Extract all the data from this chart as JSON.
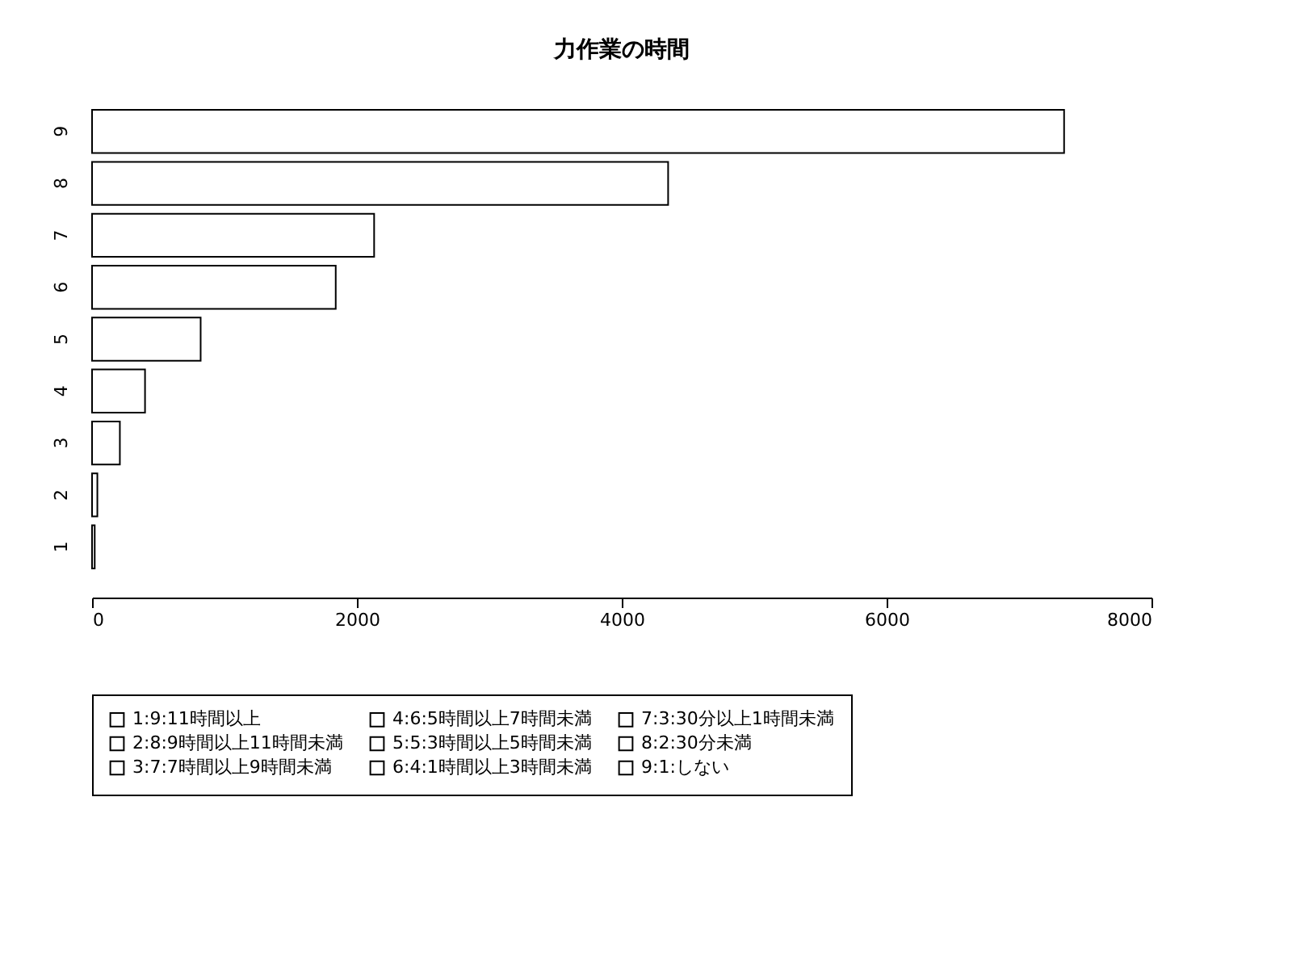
{
  "chart_data": {
    "type": "bar",
    "orientation": "horizontal",
    "title": "力作業の時間",
    "categories": [
      "9",
      "8",
      "7",
      "6",
      "5",
      "4",
      "3",
      "2",
      "1"
    ],
    "series": [
      {
        "name": "1:9:11時間以上",
        "color": "#ffffff",
        "values": [
          null,
          null,
          null,
          null,
          null,
          null,
          null,
          null,
          20
        ]
      },
      {
        "name": "2:8:9時間以上11時間未満",
        "color": "#ffffff",
        "values": [
          null,
          null,
          null,
          null,
          null,
          null,
          null,
          40,
          null
        ]
      },
      {
        "name": "3:7:7時間以上9時間未満",
        "color": "#ffffff",
        "values": [
          null,
          null,
          null,
          null,
          null,
          null,
          210,
          null,
          null
        ]
      },
      {
        "name": "4:6:5時間以上7時間未満",
        "color": "#ffffff",
        "values": [
          null,
          null,
          null,
          null,
          null,
          400,
          null,
          null,
          null
        ]
      },
      {
        "name": "5:5:3時間以上5時間未満",
        "color": "#ffffff",
        "values": [
          null,
          null,
          null,
          null,
          820,
          null,
          null,
          null,
          null
        ]
      },
      {
        "name": "6:4:1時間以上3時間未満",
        "color": "#ffffff",
        "values": [
          null,
          null,
          null,
          1840,
          null,
          null,
          null,
          null,
          null
        ]
      },
      {
        "name": "7:3:30分以上1時間未満",
        "color": "#ffffff",
        "values": [
          null,
          null,
          2130,
          null,
          null,
          null,
          null,
          null,
          null
        ]
      },
      {
        "name": "8:2:30分未満",
        "color": "#ffffff",
        "values": [
          null,
          4350,
          null,
          null,
          null,
          null,
          null,
          null,
          null
        ]
      },
      {
        "name": "9:1:しない",
        "color": "#ffffff",
        "values": [
          7340,
          null,
          null,
          null,
          null,
          null,
          null,
          null,
          null
        ]
      }
    ],
    "xlim": [
      0,
      8000
    ],
    "xticks": [
      0,
      2000,
      4000,
      6000,
      8000
    ],
    "grid": false,
    "legend": "bottom"
  }
}
